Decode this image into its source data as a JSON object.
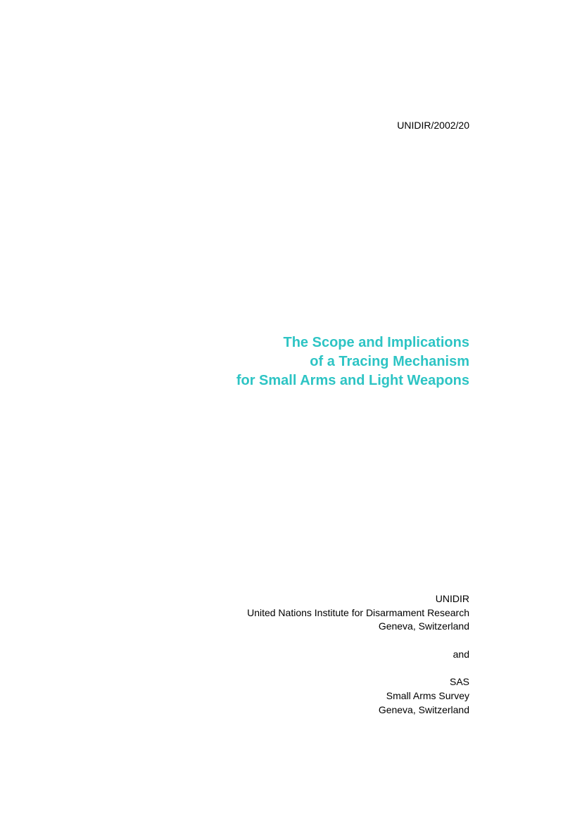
{
  "document_id": "UNIDIR/2002/20",
  "title": {
    "line1": "The Scope and Implications",
    "line2": "of a Tracing Mechanism",
    "line3": "for Small Arms and Light Weapons"
  },
  "publishers": {
    "org1_abbr": "UNIDIR",
    "org1_full": "United Nations Institute for Disarmament Research",
    "org1_location": "Geneva, Switzerland",
    "connector": "and",
    "org2_abbr": "SAS",
    "org2_full": "Small Arms Survey",
    "org2_location": "Geneva, Switzerland"
  },
  "colors": {
    "title_color": "#2dc4c4",
    "text_color": "#000000",
    "background_color": "#ffffff"
  },
  "typography": {
    "id_fontsize": 14,
    "title_fontsize": 20,
    "publisher_fontsize": 14,
    "title_fontweight": "bold"
  }
}
